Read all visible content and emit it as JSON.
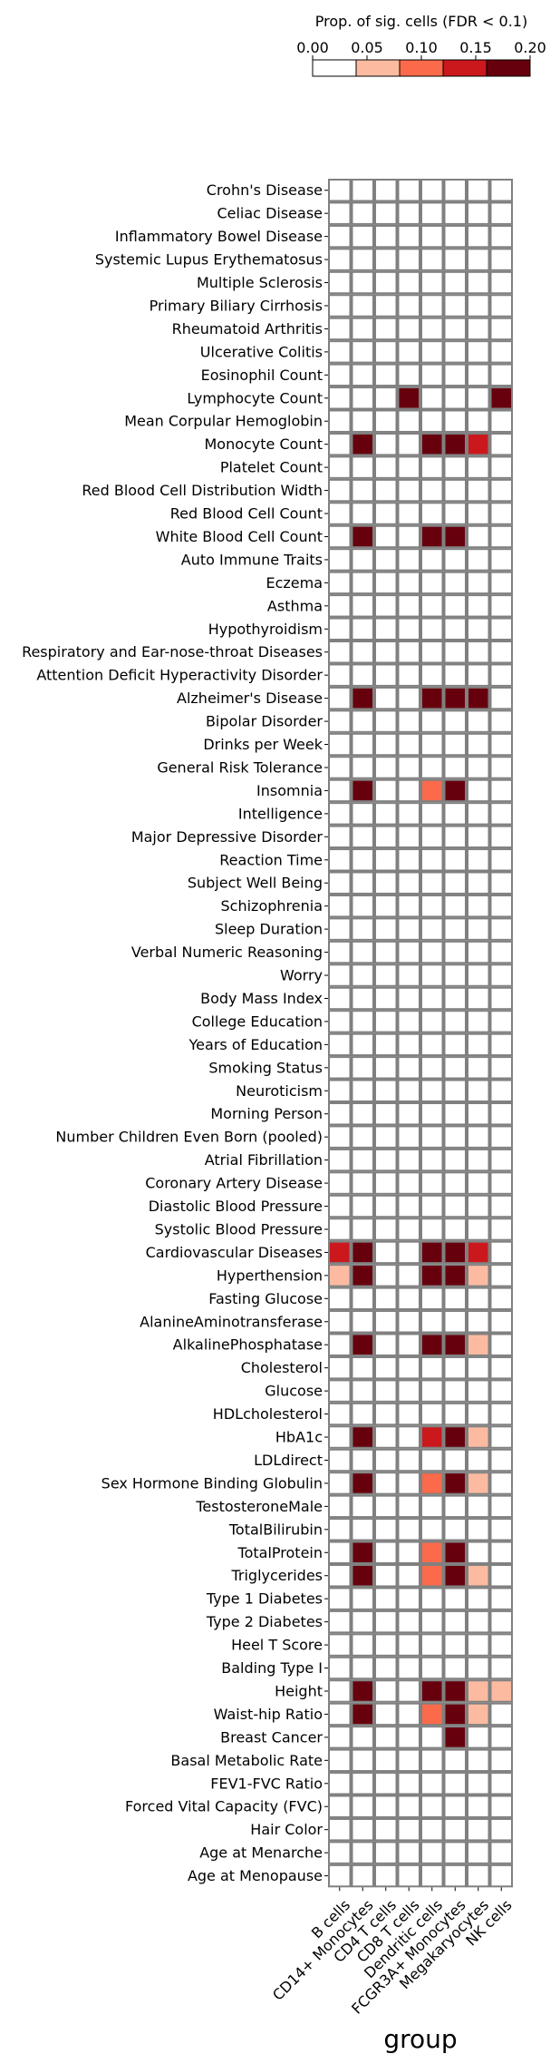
{
  "chart_data": {
    "type": "heatmap",
    "xlabel": "group",
    "colorbar": {
      "title": "Prop. of sig. cells (FDR < 0.1)",
      "ticks": [
        "0.00",
        "0.05",
        "0.10",
        "0.15",
        "0.20"
      ],
      "range": [
        0,
        0.2
      ],
      "bins": [
        {
          "from": 0.0,
          "to": 0.04,
          "color": "#ffffff"
        },
        {
          "from": 0.04,
          "to": 0.08,
          "color": "#fcbba1"
        },
        {
          "from": 0.08,
          "to": 0.12,
          "color": "#fb6a4a"
        },
        {
          "from": 0.12,
          "to": 0.16,
          "color": "#cb181d"
        },
        {
          "from": 0.16,
          "to": 0.2,
          "color": "#67000d"
        }
      ]
    },
    "columns": [
      "B cells",
      "CD14+ Monocytes",
      "CD4 T cells",
      "CD8 T cells",
      "Dendritic cells",
      "FCGR3A+ Monocytes",
      "Megakaryocytes",
      "NK cells"
    ],
    "rows": [
      "Crohn's Disease",
      "Celiac Disease",
      "Inflammatory Bowel Disease",
      "Systemic Lupus Erythematosus",
      "Multiple Sclerosis",
      "Primary Biliary Cirrhosis",
      "Rheumatoid Arthritis",
      "Ulcerative Colitis",
      "Eosinophil Count",
      "Lymphocyte Count",
      "Mean Corpular Hemoglobin",
      "Monocyte Count",
      "Platelet Count",
      "Red Blood Cell Distribution Width",
      "Red Blood Cell Count",
      "White Blood Cell Count",
      "Auto Immune Traits",
      "Eczema",
      "Asthma",
      "Hypothyroidism",
      "Respiratory and Ear-nose-throat Diseases",
      "Attention Deficit Hyperactivity Disorder",
      "Alzheimer's Disease",
      "Bipolar Disorder",
      "Drinks per Week",
      "General Risk Tolerance",
      "Insomnia",
      "Intelligence",
      "Major Depressive Disorder",
      "Reaction Time",
      "Subject Well Being",
      "Schizophrenia",
      "Sleep Duration",
      "Verbal Numeric Reasoning",
      "Worry",
      "Body Mass Index",
      "College Education",
      "Years of Education",
      "Smoking Status",
      "Neuroticism",
      "Morning Person",
      "Number Children Even Born (pooled)",
      "Atrial Fibrillation",
      "Coronary Artery Disease",
      "Diastolic Blood Pressure",
      "Systolic Blood Pressure",
      "Cardiovascular Diseases",
      "Hyperthension",
      "Fasting Glucose",
      "AlanineAminotransferase",
      "AlkalinePhosphatase",
      "Cholesterol",
      "Glucose",
      "HDLcholesterol",
      "HbA1c",
      "LDLdirect",
      "Sex Hormone Binding Globulin",
      "TestosteroneMale",
      "TotalBilirubin",
      "TotalProtein",
      "Triglycerides",
      "Type 1 Diabetes",
      "Type 2 Diabetes",
      "Heel T Score",
      "Balding Type I",
      "Height",
      "Waist-hip Ratio",
      "Breast Cancer",
      "Basal Metabolic Rate",
      "FEV1-FVC Ratio",
      "Forced Vital Capacity (FVC)",
      "Hair Color",
      "Age at Menarche",
      "Age at Menopause"
    ],
    "values": [
      [
        0,
        0,
        0,
        0,
        0,
        0,
        0,
        0
      ],
      [
        0,
        0,
        0,
        0,
        0,
        0,
        0,
        0
      ],
      [
        0,
        0,
        0,
        0,
        0,
        0,
        0,
        0
      ],
      [
        0,
        0,
        0,
        0,
        0,
        0,
        0,
        0
      ],
      [
        0,
        0,
        0,
        0,
        0,
        0,
        0,
        0
      ],
      [
        0,
        0,
        0,
        0,
        0,
        0,
        0,
        0
      ],
      [
        0,
        0,
        0,
        0,
        0,
        0,
        0,
        0
      ],
      [
        0,
        0,
        0,
        0,
        0,
        0,
        0,
        0
      ],
      [
        0,
        0,
        0,
        0,
        0,
        0,
        0,
        0
      ],
      [
        0,
        0,
        0,
        0.2,
        0,
        0,
        0,
        0.2
      ],
      [
        0,
        0,
        0,
        0,
        0,
        0,
        0,
        0
      ],
      [
        0,
        0.2,
        0,
        0,
        0.2,
        0.2,
        0.14,
        0
      ],
      [
        0,
        0,
        0,
        0,
        0,
        0,
        0,
        0
      ],
      [
        0,
        0,
        0,
        0,
        0,
        0,
        0,
        0
      ],
      [
        0,
        0,
        0,
        0,
        0,
        0,
        0,
        0
      ],
      [
        0,
        0.2,
        0,
        0,
        0.2,
        0.2,
        0,
        0
      ],
      [
        0,
        0,
        0,
        0,
        0,
        0,
        0,
        0
      ],
      [
        0,
        0,
        0,
        0,
        0,
        0,
        0,
        0
      ],
      [
        0,
        0,
        0,
        0,
        0,
        0,
        0,
        0
      ],
      [
        0,
        0,
        0,
        0,
        0,
        0,
        0,
        0
      ],
      [
        0,
        0,
        0,
        0,
        0,
        0,
        0,
        0
      ],
      [
        0,
        0,
        0,
        0,
        0,
        0,
        0,
        0
      ],
      [
        0,
        0.2,
        0,
        0,
        0.2,
        0.2,
        0.2,
        0
      ],
      [
        0,
        0,
        0,
        0,
        0,
        0,
        0,
        0
      ],
      [
        0,
        0,
        0,
        0,
        0,
        0,
        0,
        0
      ],
      [
        0,
        0,
        0,
        0,
        0,
        0,
        0,
        0
      ],
      [
        0,
        0.2,
        0,
        0,
        0.1,
        0.2,
        0,
        0
      ],
      [
        0,
        0,
        0,
        0,
        0,
        0,
        0,
        0
      ],
      [
        0,
        0,
        0,
        0,
        0,
        0,
        0,
        0
      ],
      [
        0,
        0,
        0,
        0,
        0,
        0,
        0,
        0
      ],
      [
        0,
        0,
        0,
        0,
        0,
        0,
        0,
        0
      ],
      [
        0,
        0,
        0,
        0,
        0,
        0,
        0,
        0
      ],
      [
        0,
        0,
        0,
        0,
        0,
        0,
        0,
        0
      ],
      [
        0,
        0,
        0,
        0,
        0,
        0,
        0,
        0
      ],
      [
        0,
        0,
        0,
        0,
        0,
        0,
        0,
        0
      ],
      [
        0,
        0,
        0,
        0,
        0,
        0,
        0,
        0
      ],
      [
        0,
        0,
        0,
        0,
        0,
        0,
        0,
        0
      ],
      [
        0,
        0,
        0,
        0,
        0,
        0,
        0,
        0
      ],
      [
        0,
        0,
        0,
        0,
        0,
        0,
        0,
        0
      ],
      [
        0,
        0,
        0,
        0,
        0,
        0,
        0,
        0
      ],
      [
        0,
        0,
        0,
        0,
        0,
        0,
        0,
        0
      ],
      [
        0,
        0,
        0,
        0,
        0,
        0,
        0,
        0
      ],
      [
        0,
        0,
        0,
        0,
        0,
        0,
        0,
        0
      ],
      [
        0,
        0,
        0,
        0,
        0,
        0,
        0,
        0
      ],
      [
        0,
        0,
        0,
        0,
        0,
        0,
        0,
        0
      ],
      [
        0,
        0,
        0,
        0,
        0,
        0,
        0,
        0
      ],
      [
        0.14,
        0.2,
        0,
        0,
        0.2,
        0.2,
        0.14,
        0
      ],
      [
        0.06,
        0.2,
        0,
        0,
        0.2,
        0.2,
        0.06,
        0
      ],
      [
        0,
        0,
        0,
        0,
        0,
        0,
        0,
        0
      ],
      [
        0,
        0,
        0,
        0,
        0,
        0,
        0,
        0
      ],
      [
        0,
        0.2,
        0,
        0,
        0.2,
        0.2,
        0.06,
        0
      ],
      [
        0,
        0,
        0,
        0,
        0,
        0,
        0,
        0
      ],
      [
        0,
        0,
        0,
        0,
        0,
        0,
        0,
        0
      ],
      [
        0,
        0,
        0,
        0,
        0,
        0,
        0,
        0
      ],
      [
        0,
        0.2,
        0,
        0,
        0.14,
        0.2,
        0.06,
        0
      ],
      [
        0,
        0,
        0,
        0,
        0,
        0,
        0,
        0
      ],
      [
        0,
        0.2,
        0,
        0,
        0.1,
        0.2,
        0.06,
        0
      ],
      [
        0,
        0,
        0,
        0,
        0,
        0,
        0,
        0
      ],
      [
        0,
        0,
        0,
        0,
        0,
        0,
        0,
        0
      ],
      [
        0,
        0.2,
        0,
        0,
        0.1,
        0.2,
        0,
        0
      ],
      [
        0,
        0.2,
        0,
        0,
        0.1,
        0.2,
        0.06,
        0
      ],
      [
        0,
        0,
        0,
        0,
        0,
        0,
        0,
        0
      ],
      [
        0,
        0,
        0,
        0,
        0,
        0,
        0,
        0
      ],
      [
        0,
        0,
        0,
        0,
        0,
        0,
        0,
        0
      ],
      [
        0,
        0,
        0,
        0,
        0,
        0,
        0,
        0
      ],
      [
        0,
        0.2,
        0,
        0,
        0.2,
        0.2,
        0.06,
        0.06
      ],
      [
        0,
        0.2,
        0,
        0,
        0.1,
        0.2,
        0.06,
        0
      ],
      [
        0,
        0,
        0,
        0,
        0,
        0.2,
        0,
        0
      ],
      [
        0,
        0,
        0,
        0,
        0,
        0,
        0,
        0
      ],
      [
        0,
        0,
        0,
        0,
        0,
        0,
        0,
        0
      ],
      [
        0,
        0,
        0,
        0,
        0,
        0,
        0,
        0
      ],
      [
        0,
        0,
        0,
        0,
        0,
        0,
        0,
        0
      ],
      [
        0,
        0,
        0,
        0,
        0,
        0,
        0,
        0
      ],
      [
        0,
        0,
        0,
        0,
        0,
        0,
        0,
        0
      ]
    ]
  }
}
